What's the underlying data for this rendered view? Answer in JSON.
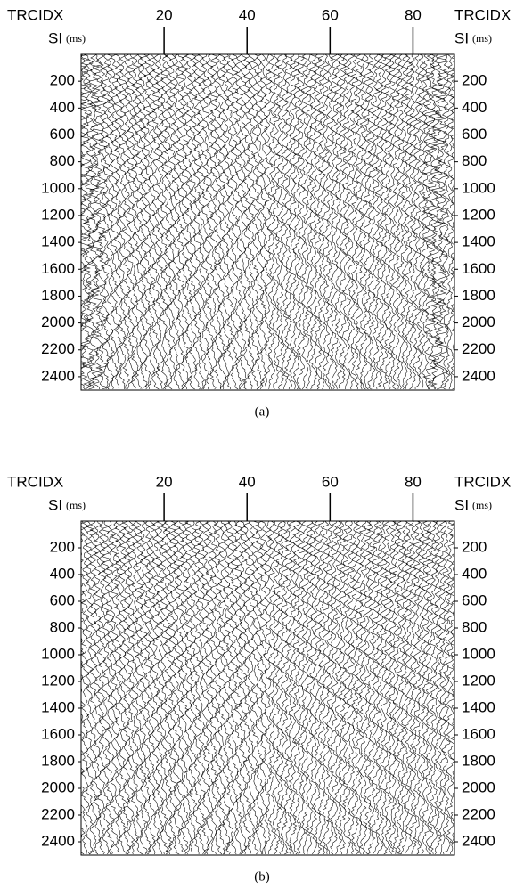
{
  "chart_data": [
    {
      "type": "seismic",
      "caption": "(a)",
      "xlabel": "TRCIDX",
      "ylabel": "SI",
      "yunit": "(ms)",
      "xlim": [
        0,
        90
      ],
      "xticks": [
        20,
        40,
        60,
        80
      ],
      "ylim": [
        0,
        2500
      ],
      "yticks": [
        200,
        400,
        600,
        800,
        1000,
        1200,
        1400,
        1600,
        1800,
        2000,
        2200,
        2400
      ]
    },
    {
      "type": "seismic",
      "caption": "(b)",
      "xlabel": "TRCIDX",
      "ylabel": "SI",
      "yunit": "(ms)",
      "xlim": [
        0,
        90
      ],
      "xticks": [
        20,
        40,
        60,
        80
      ],
      "ylim": [
        0,
        2500
      ],
      "yticks": [
        200,
        400,
        600,
        800,
        1000,
        1200,
        1400,
        1600,
        1800,
        2000,
        2200,
        2400
      ]
    }
  ]
}
